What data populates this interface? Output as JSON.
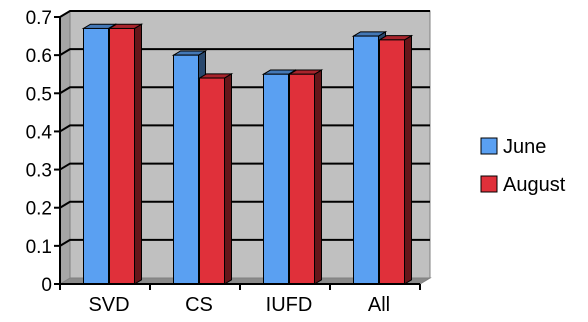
{
  "chart_data": {
    "type": "bar",
    "title": "",
    "xlabel": "",
    "ylabel": "",
    "categories": [
      "SVD",
      "CS",
      "IUFD",
      "All"
    ],
    "series": [
      {
        "name": "June",
        "values": [
          0.67,
          0.6,
          0.55,
          0.65
        ],
        "color": "#5aa0f2"
      },
      {
        "name": "August",
        "values": [
          0.67,
          0.54,
          0.55,
          0.64
        ],
        "color": "#e0303a"
      }
    ],
    "ylim": [
      0,
      0.7
    ],
    "yticks": [
      0,
      0.1,
      0.2,
      0.3,
      0.4,
      0.5,
      0.6,
      0.7
    ],
    "ytick_labels": [
      "0",
      "0.1",
      "0.2",
      "0.3",
      "0.4",
      "0.5",
      "0.6",
      "0.7"
    ],
    "grid": true,
    "three_d": true,
    "plot_background": "#c0c0c0",
    "legend_position": "right"
  }
}
